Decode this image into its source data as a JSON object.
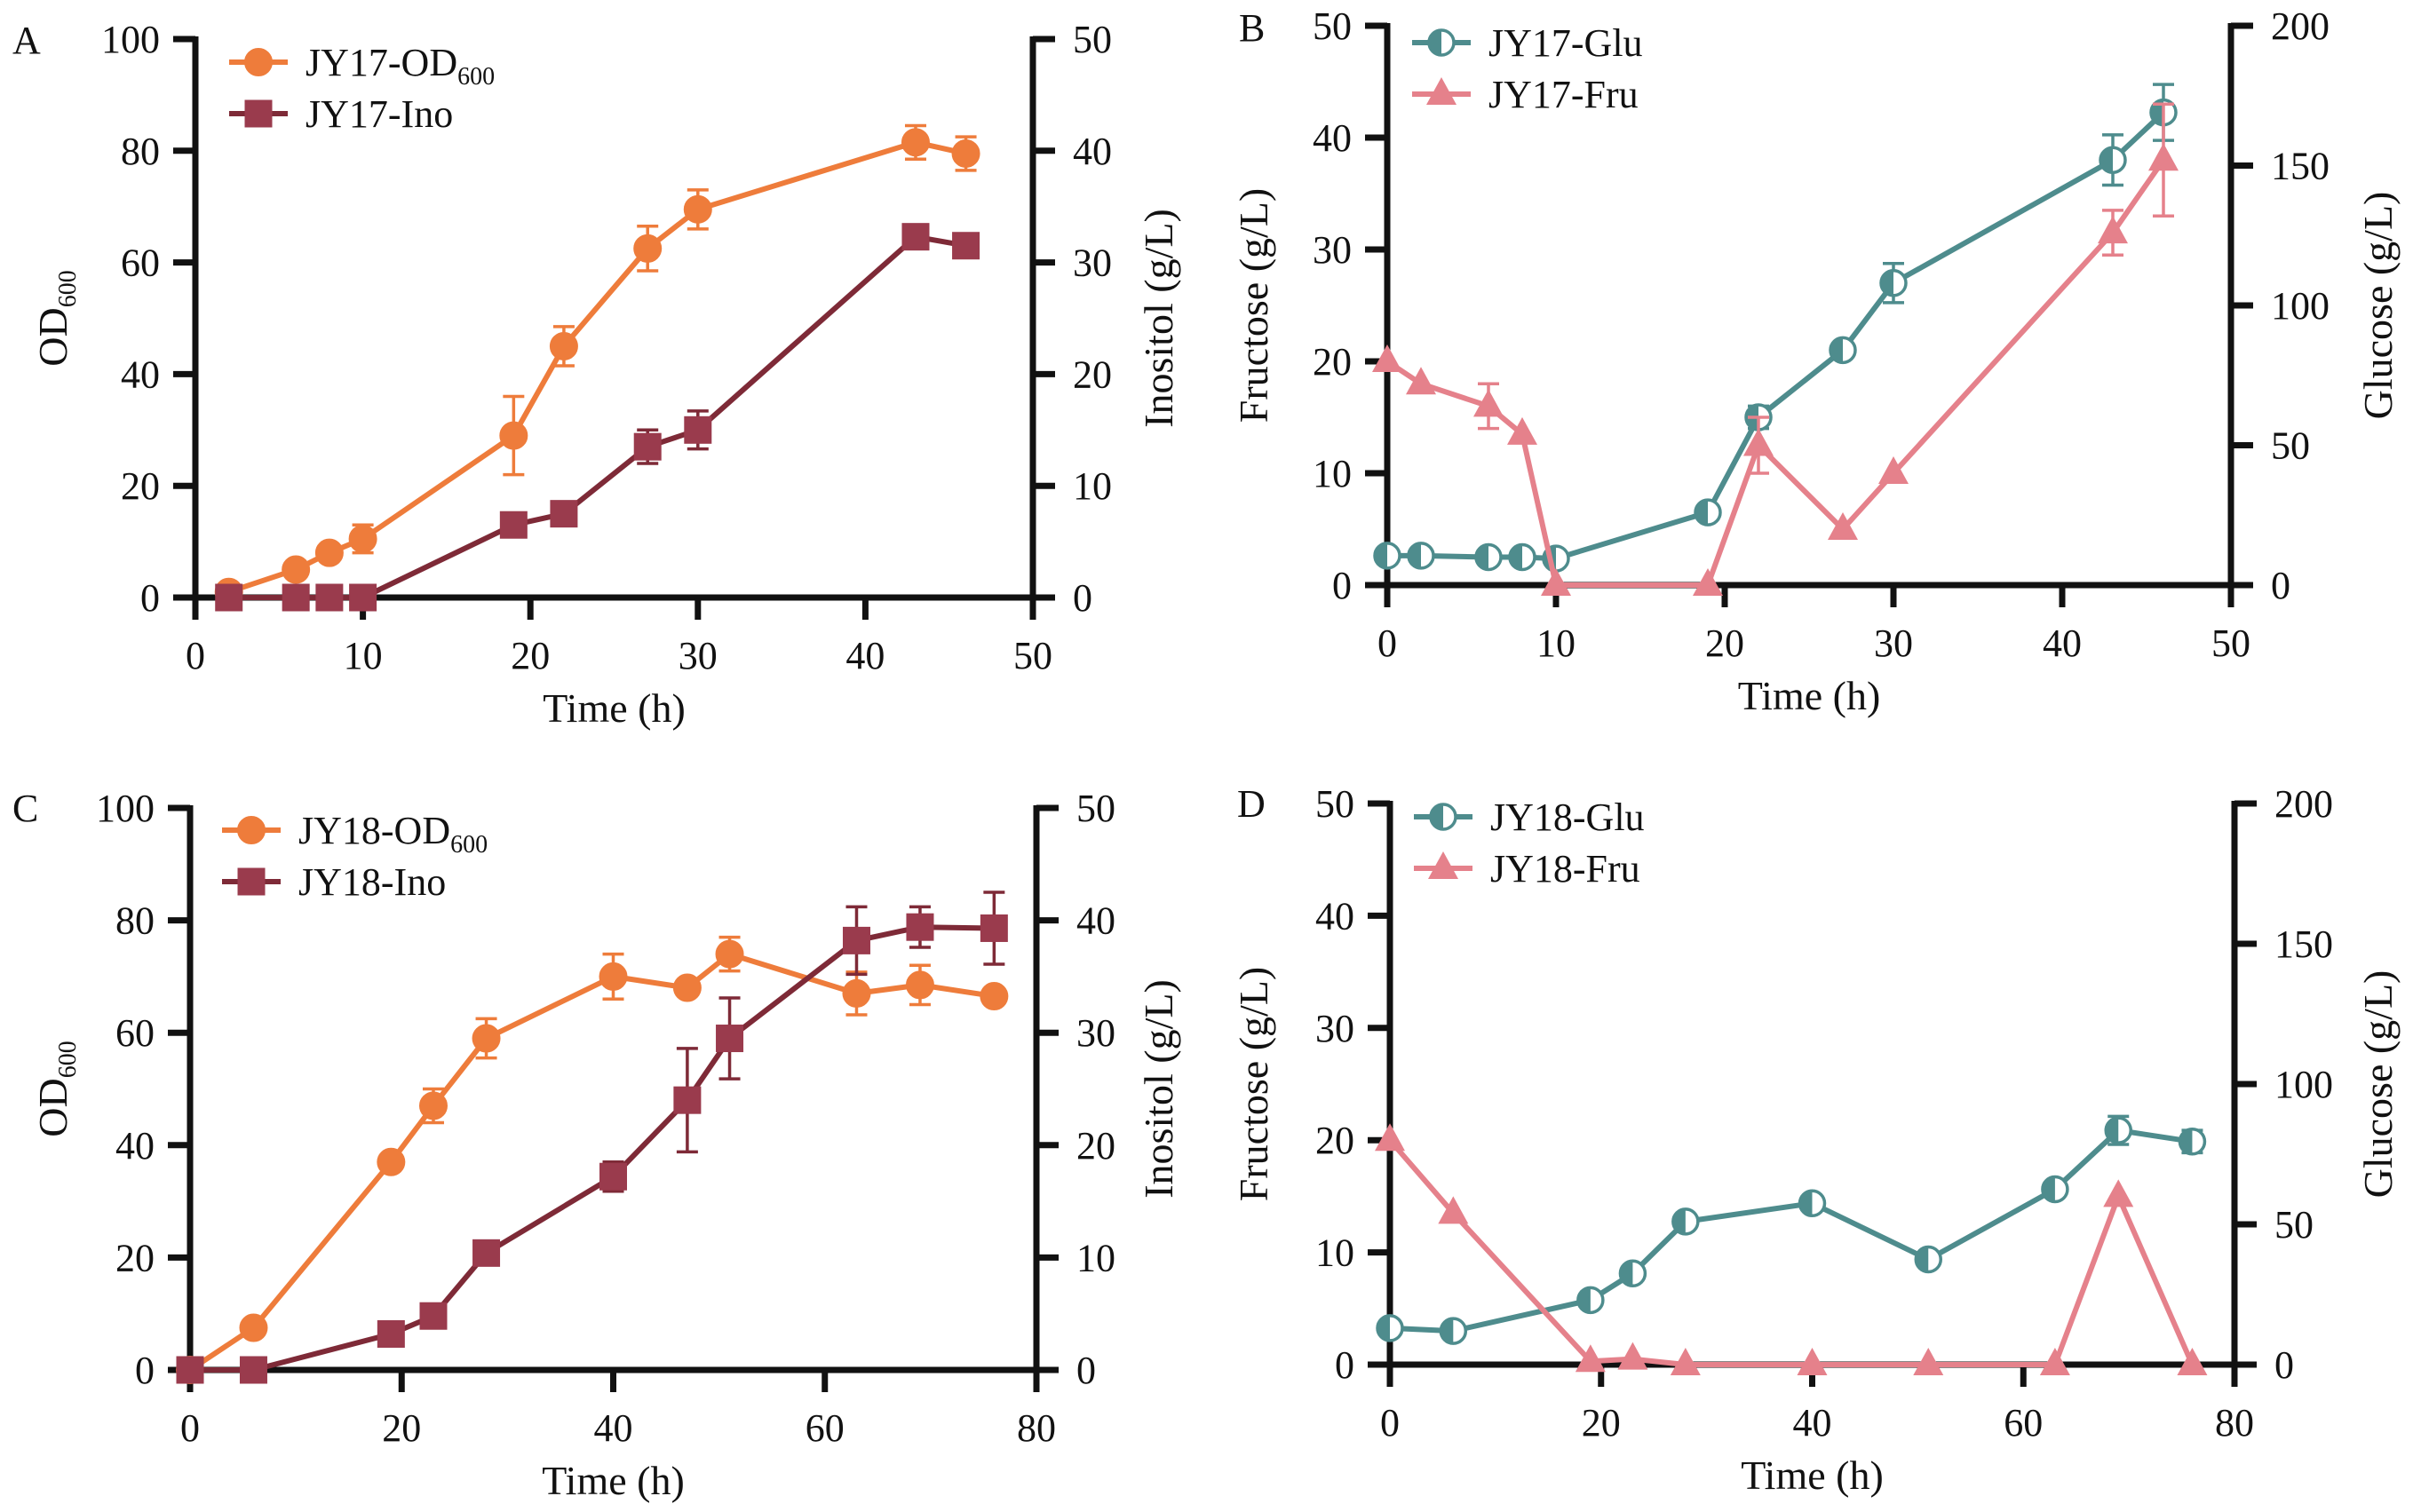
{
  "figure": {
    "colors": {
      "orange": "#EE7C3B",
      "maroon_fill": "#9A3B4D",
      "maroon_line": "#7E2A37",
      "teal": "#4E8C8D",
      "pink": "#E5818B",
      "axis": "#111111"
    }
  },
  "chart_data": [
    {
      "panel": "A",
      "type": "line",
      "xlabel": "Time (h)",
      "ylabel": "OD600",
      "ylabel_main": "OD",
      "ylabel_sub": "600",
      "y2label": "Inositol (g/L)",
      "xlim": [
        0,
        50
      ],
      "ylim": [
        0,
        100
      ],
      "y2lim": [
        0,
        50
      ],
      "xticks": [
        "0",
        "10",
        "20",
        "30",
        "40",
        "50"
      ],
      "yticks": [
        "0",
        "20",
        "40",
        "60",
        "80",
        "100"
      ],
      "y2ticks": [
        "0",
        "10",
        "20",
        "30",
        "40",
        "50"
      ],
      "grid": false,
      "legend_position": "top-left",
      "series": [
        {
          "name": "JY17-OD600",
          "legend_main": "JY17-OD",
          "legend_sub": "600",
          "axis": "left",
          "marker": "circle",
          "color_key": "orange",
          "x": [
            2,
            6,
            8,
            10,
            19,
            22,
            27,
            30,
            43,
            46
          ],
          "y": [
            1,
            5,
            8,
            10.5,
            29,
            45,
            62.5,
            69.5,
            81.5,
            79.5
          ],
          "err": [
            0,
            0,
            0,
            2.5,
            7,
            3.5,
            4,
            3.5,
            3,
            3
          ]
        },
        {
          "name": "JY17-Ino",
          "legend_main": "JY17-Ino",
          "legend_sub": "",
          "axis": "right",
          "marker": "square",
          "color_key": "maroon",
          "x": [
            2,
            6,
            8,
            10,
            19,
            22,
            27,
            30,
            43,
            46
          ],
          "y": [
            0,
            0,
            0,
            0,
            6.5,
            7.5,
            13.5,
            15,
            32.3,
            31.5
          ],
          "err": [
            0,
            0,
            0,
            0,
            0,
            0,
            1.5,
            1.7,
            1,
            1
          ]
        }
      ]
    },
    {
      "panel": "B",
      "type": "line",
      "xlabel": "Time (h)",
      "ylabel": "Fructose (g/L)",
      "y2label": "Glucose (g/L)",
      "xlim": [
        0,
        50
      ],
      "ylim": [
        0,
        50
      ],
      "y2lim": [
        0,
        200
      ],
      "xticks": [
        "0",
        "10",
        "20",
        "30",
        "40",
        "50"
      ],
      "yticks": [
        "0",
        "10",
        "20",
        "30",
        "40",
        "50"
      ],
      "y2ticks": [
        "0",
        "50",
        "100",
        "150",
        "200"
      ],
      "grid": false,
      "legend_position": "top-left",
      "series": [
        {
          "name": "JY17-Glu",
          "legend_main": "JY17-Glu",
          "legend_sub": "",
          "axis": "right",
          "marker": "half-circle",
          "color_key": "teal",
          "x": [
            0,
            2,
            6,
            8,
            10,
            19,
            22,
            27,
            30,
            43,
            46
          ],
          "y": [
            10.5,
            10.5,
            10,
            10,
            9.5,
            26,
            60,
            84,
            108,
            152,
            169
          ],
          "err": [
            0,
            0,
            0,
            0,
            0,
            0,
            4,
            0,
            7,
            9,
            10
          ]
        },
        {
          "name": "JY17-Fru",
          "legend_main": "JY17-Fru",
          "legend_sub": "",
          "axis": "left",
          "marker": "triangle",
          "color_key": "pink",
          "x": [
            0,
            2,
            6,
            8,
            10,
            19,
            22,
            27,
            30,
            43,
            46
          ],
          "y": [
            20,
            18,
            16,
            13.5,
            0,
            0,
            12.5,
            5,
            10,
            31.5,
            38
          ],
          "err": [
            0,
            0,
            2,
            0,
            0,
            0,
            2.5,
            0,
            0,
            2,
            5
          ]
        }
      ]
    },
    {
      "panel": "C",
      "type": "line",
      "xlabel": "Time (h)",
      "ylabel": "OD600",
      "ylabel_main": "OD",
      "ylabel_sub": "600",
      "y2label": "Inositol (g/L)",
      "xlim": [
        0,
        80
      ],
      "ylim": [
        0,
        100
      ],
      "y2lim": [
        0,
        50
      ],
      "xticks": [
        "0",
        "20",
        "40",
        "60",
        "80"
      ],
      "yticks": [
        "0",
        "20",
        "40",
        "60",
        "80",
        "100"
      ],
      "y2ticks": [
        "0",
        "10",
        "20",
        "30",
        "40",
        "50"
      ],
      "grid": false,
      "legend_position": "top-left",
      "series": [
        {
          "name": "JY18-OD600",
          "legend_main": "JY18-OD",
          "legend_sub": "600",
          "axis": "left",
          "marker": "circle",
          "color_key": "orange",
          "x": [
            0,
            6,
            19,
            23,
            28,
            40,
            47,
            51,
            63,
            69,
            76
          ],
          "y": [
            0,
            7.5,
            37,
            47,
            59,
            70,
            68,
            74,
            67,
            68.5,
            66.5
          ],
          "err": [
            0,
            0,
            0,
            3,
            3.5,
            4,
            0,
            3,
            3.8,
            3.5,
            0
          ]
        },
        {
          "name": "JY18-Ino",
          "legend_main": "JY18-Ino",
          "legend_sub": "",
          "axis": "right",
          "marker": "square",
          "color_key": "maroon",
          "x": [
            0,
            6,
            19,
            23,
            28,
            40,
            47,
            51,
            63,
            69,
            76
          ],
          "y": [
            0,
            0,
            3.2,
            4.8,
            10.4,
            17.2,
            24,
            29.5,
            38.2,
            39.4,
            39.3
          ],
          "err": [
            0,
            0,
            0,
            0,
            0,
            1.3,
            4.6,
            3.6,
            3,
            1.8,
            3.2
          ]
        }
      ]
    },
    {
      "panel": "D",
      "type": "line",
      "xlabel": "Time (h)",
      "ylabel": "Fructose (g/L)",
      "y2label": "Glucose (g/L)",
      "xlim": [
        0,
        80
      ],
      "ylim": [
        0,
        50
      ],
      "y2lim": [
        0,
        200
      ],
      "xticks": [
        "0",
        "20",
        "40",
        "60",
        "80"
      ],
      "yticks": [
        "0",
        "10",
        "20",
        "30",
        "40",
        "50"
      ],
      "y2ticks": [
        "0",
        "50",
        "100",
        "150",
        "200"
      ],
      "grid": false,
      "legend_position": "top-left",
      "series": [
        {
          "name": "JY18-Glu",
          "legend_main": "JY18-Glu",
          "legend_sub": "",
          "axis": "right",
          "marker": "half-circle",
          "color_key": "teal",
          "x": [
            0,
            6,
            19,
            23,
            28,
            40,
            51,
            63,
            69,
            76
          ],
          "y": [
            13,
            12,
            23,
            32.5,
            51,
            57.5,
            37.5,
            62.5,
            83.5,
            79.5
          ],
          "err": [
            0,
            0,
            0,
            0,
            0,
            0,
            0,
            0,
            5,
            4
          ]
        },
        {
          "name": "JY18-Fru",
          "legend_main": "JY18-Fru",
          "legend_sub": "",
          "axis": "left",
          "marker": "triangle",
          "color_key": "pink",
          "x": [
            0,
            6,
            19,
            23,
            28,
            40,
            51,
            63,
            69,
            76
          ],
          "y": [
            20,
            13.5,
            0.3,
            0.5,
            0,
            0,
            0,
            0,
            15,
            0
          ],
          "err": [
            0,
            0,
            0,
            0,
            0,
            0,
            0,
            0,
            0,
            0
          ]
        }
      ]
    }
  ]
}
